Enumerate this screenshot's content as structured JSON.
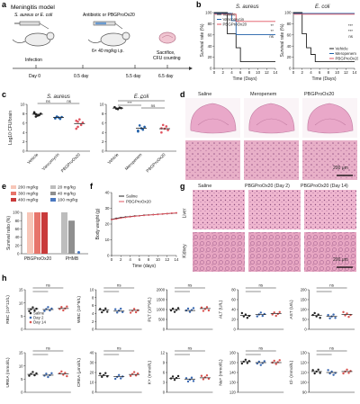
{
  "panels": {
    "a": {
      "label": "a",
      "title": "Meningitis model",
      "inject_label": "S. aureus or E. coli",
      "treat_label": "Antibiotic or PBGProOx20",
      "dose_label": "6× 40 mg/kg i.p.",
      "sacrifice_label": "Sacrifice,\nCFU counting",
      "infection_label": "Infection",
      "days": [
        "Day 0",
        "0.5 day",
        "5.5 day",
        "6.5 day"
      ]
    },
    "b": {
      "label": "b"
    },
    "c": {
      "label": "c"
    },
    "d": {
      "label": "d",
      "columns": [
        "Saline",
        "Meropenem",
        "PBGProOx20"
      ],
      "scalebar": "200 μm"
    },
    "e": {
      "label": "e"
    },
    "f": {
      "label": "f"
    },
    "g": {
      "label": "g",
      "columns": [
        "Saline",
        "PBGProOx20 (Day 2)",
        "PBGProOx20 (Day 14)"
      ],
      "rows": [
        "Liver",
        "Kidney"
      ],
      "scalebar": "200 μm"
    },
    "h": {
      "label": "h"
    }
  },
  "colors": {
    "vehicle": "#222222",
    "vancomycin": "#1f5fa8",
    "meropenem": "#1f5fa8",
    "pbg": "#e05560",
    "pbg_dark": "#c93a3a",
    "day2": "#3a68b0",
    "day14": "#d9534f",
    "grey": "#a5a5a5",
    "pink": "#f4b8b8",
    "tissue": "#e6a9c4"
  },
  "chart_data": [
    {
      "id": "b1",
      "type": "line",
      "title": "S. aureus",
      "xlabel": "Time (Days)",
      "ylabel": "Survival rate (%)",
      "x": [
        0,
        2,
        4,
        6,
        8,
        10,
        12,
        14
      ],
      "xlim": [
        0,
        14
      ],
      "ylim": [
        0,
        100
      ],
      "yticks": [
        0,
        20,
        40,
        60,
        80,
        100
      ],
      "series": [
        {
          "name": "Vehicle",
          "color": "#222222",
          "steps": [
            [
              0,
              100
            ],
            [
              3,
              100
            ],
            [
              3,
              62
            ],
            [
              5,
              62
            ],
            [
              5,
              37
            ],
            [
              6,
              37
            ],
            [
              6,
              12
            ],
            [
              14,
              12
            ]
          ]
        },
        {
          "name": "Vancomycin",
          "color": "#1f5fa8",
          "steps": [
            [
              0,
              100
            ],
            [
              4,
              100
            ],
            [
              4,
              87
            ],
            [
              5,
              87
            ],
            [
              5,
              62
            ],
            [
              14,
              62
            ]
          ]
        },
        {
          "name": "PBGProOx20",
          "color": "#e05560",
          "steps": [
            [
              0,
              100
            ],
            [
              5,
              100
            ],
            [
              5,
              87
            ],
            [
              14,
              87
            ]
          ]
        }
      ],
      "annotations": [
        "**",
        "**",
        "ns"
      ]
    },
    {
      "id": "b2",
      "type": "line",
      "title": "E. coli",
      "xlabel": "Time (Days)",
      "ylabel": "Survival rate (%)",
      "x": [
        0,
        2,
        4,
        6,
        8,
        10,
        12,
        14
      ],
      "xlim": [
        0,
        14
      ],
      "ylim": [
        0,
        100
      ],
      "yticks": [
        0,
        20,
        40,
        60,
        80,
        100
      ],
      "series": [
        {
          "name": "Vehicle",
          "color": "#222222",
          "steps": [
            [
              0,
              100
            ],
            [
              2,
              100
            ],
            [
              2,
              62
            ],
            [
              3,
              62
            ],
            [
              3,
              37
            ],
            [
              4,
              37
            ],
            [
              4,
              25
            ],
            [
              5,
              25
            ],
            [
              5,
              12
            ],
            [
              14,
              12
            ]
          ]
        },
        {
          "name": "Meropenem",
          "color": "#1f5fa8",
          "steps": [
            [
              0,
              100
            ],
            [
              14,
              100
            ]
          ]
        },
        {
          "name": "PBGProOx20",
          "color": "#e05560",
          "steps": [
            [
              0,
              100
            ],
            [
              14,
              100
            ]
          ]
        }
      ],
      "annotations": [
        "***",
        "***",
        "ns"
      ]
    },
    {
      "id": "c1",
      "type": "scatter",
      "title": "S. aureus",
      "ylabel": "Log10 CFU/brain",
      "ylim": [
        0,
        10
      ],
      "yticks": [
        0,
        2,
        4,
        6,
        8,
        10
      ],
      "categories": [
        "Vehicle",
        "Vancomycin",
        "PBGProOx20"
      ],
      "colors": [
        "#222222",
        "#1f5fa8",
        "#e05560"
      ],
      "means": [
        7.9,
        7.2,
        5.9
      ],
      "points": [
        [
          8.3,
          7.9,
          7.6,
          7.7,
          8.0,
          8.1,
          7.4
        ],
        [
          7.0,
          7.4,
          7.2,
          6.9,
          7.3,
          7.1
        ],
        [
          6.5,
          5.2,
          6.8,
          5.6,
          6.1,
          4.8,
          6.3
        ]
      ],
      "annotations": [
        "ns",
        "ns"
      ]
    },
    {
      "id": "c2",
      "type": "scatter",
      "title": "E. coli",
      "ylabel": "Log10 CFU/brain",
      "ylim": [
        0,
        10
      ],
      "yticks": [
        0,
        2,
        4,
        6,
        8,
        10
      ],
      "categories": [
        "Vehicle",
        "Meropenem",
        "PBGProOx20"
      ],
      "colors": [
        "#222222",
        "#1f5fa8",
        "#e05560"
      ],
      "means": [
        9.2,
        4.9,
        4.8
      ],
      "points": [
        [
          9.4,
          9.1,
          9.0,
          9.3,
          9.2
        ],
        [
          4.2,
          5.5,
          4.9,
          4.6,
          5.2,
          4.4
        ],
        [
          4.0,
          5.6,
          4.8,
          5.3,
          4.5,
          4.9
        ]
      ],
      "annotations": [
        "**",
        "***",
        "ns"
      ]
    },
    {
      "id": "e",
      "type": "bar",
      "ylabel": "Survival ratio (%)",
      "ylim": [
        0,
        100
      ],
      "yticks": [
        0,
        20,
        40,
        60,
        80,
        100
      ],
      "legend": [
        {
          "name": "200 mg/kg",
          "color": "#f7c6b8"
        },
        {
          "name": "300 mg/kg",
          "color": "#e7746a"
        },
        {
          "name": "400 mg/kg",
          "color": "#c93a3a"
        },
        {
          "name": "20 mg/kg",
          "color": "#bdbdbd"
        },
        {
          "name": "40 mg/kg",
          "color": "#8f8f8f"
        },
        {
          "name": "100 mg/kg",
          "color": "#4a78c0"
        }
      ],
      "groups": [
        {
          "name": "PBGProOx20",
          "values": [
            100,
            100,
            100
          ]
        },
        {
          "name": "PHMB",
          "values": [
            100,
            80,
            0
          ]
        }
      ]
    },
    {
      "id": "f",
      "type": "line",
      "xlabel": "Time (days)",
      "ylabel": "Body weight (g)",
      "xlim": [
        0,
        14
      ],
      "ylim": [
        0,
        40
      ],
      "yticks": [
        0,
        10,
        20,
        30,
        40
      ],
      "xticks": [
        0,
        2,
        4,
        6,
        8,
        10,
        12,
        14
      ],
      "x": [
        0,
        1,
        2,
        3,
        4,
        5,
        6,
        7,
        8,
        9,
        10,
        11,
        12,
        13,
        14
      ],
      "series": [
        {
          "name": "Saline",
          "color": "#222222",
          "values": [
            23.0,
            23.6,
            24.1,
            24.5,
            24.8,
            25.1,
            25.3,
            25.6,
            25.8,
            26.0,
            26.2,
            26.4,
            26.6,
            26.8,
            27.0
          ]
        },
        {
          "name": "PBGProOx20",
          "color": "#e05560",
          "values": [
            22.8,
            23.2,
            23.8,
            24.2,
            24.6,
            24.9,
            25.2,
            25.5,
            25.7,
            25.9,
            26.1,
            26.4,
            26.6,
            26.9,
            27.1
          ]
        }
      ]
    },
    {
      "id": "h",
      "type": "scatter",
      "legend": [
        {
          "name": "Saline",
          "color": "#222222"
        },
        {
          "name": "Day 2",
          "color": "#3a68b0"
        },
        {
          "name": "Day 14",
          "color": "#d9534f"
        }
      ],
      "panels": [
        {
          "ylabel": "RBC (10^12/L)",
          "ylim": [
            0,
            15
          ],
          "yticks": [
            0,
            5,
            10,
            15
          ],
          "means": [
            7.8,
            7.5,
            7.9
          ]
        },
        {
          "ylabel": "WBC (10^9/L)",
          "ylim": [
            0,
            10
          ],
          "yticks": [
            0,
            2,
            4,
            6,
            8,
            10
          ],
          "means": [
            4.9,
            4.6,
            4.8
          ]
        },
        {
          "ylabel": "PLT (10^9/L)",
          "ylim": [
            0,
            2000
          ],
          "yticks": [
            0,
            500,
            1000,
            1500,
            2000
          ],
          "means": [
            1000,
            950,
            1050
          ]
        },
        {
          "ylabel": "ALT (U/L)",
          "ylim": [
            0,
            80
          ],
          "yticks": [
            0,
            20,
            40,
            60,
            80
          ],
          "means": [
            28,
            30,
            32
          ]
        },
        {
          "ylabel": "AST (U/L)",
          "ylim": [
            0,
            200
          ],
          "yticks": [
            0,
            50,
            100,
            150,
            200
          ],
          "means": [
            70,
            65,
            75
          ]
        },
        {
          "ylabel": "UREA (mmol/L)",
          "ylim": [
            0,
            15
          ],
          "yticks": [
            0,
            5,
            10,
            15
          ],
          "means": [
            6.8,
            6.5,
            7.0
          ]
        },
        {
          "ylabel": "CREA (μmol/L)",
          "ylim": [
            0,
            40
          ],
          "yticks": [
            0,
            10,
            20,
            30,
            40
          ],
          "means": [
            17,
            16,
            18
          ]
        },
        {
          "ylabel": "K+ (mmol/L)",
          "ylim": [
            0,
            12
          ],
          "yticks": [
            0,
            3,
            6,
            9,
            12
          ],
          "means": [
            4.2,
            4.0,
            4.4
          ]
        },
        {
          "ylabel": "Na+ (mmol/L)",
          "ylim": [
            120,
            160
          ],
          "yticks": [
            120,
            130,
            140,
            150,
            160
          ],
          "means": [
            151,
            150,
            150
          ]
        },
        {
          "ylabel": "Cl- (mmol/L)",
          "ylim": [
            90,
            130
          ],
          "yticks": [
            90,
            100,
            110,
            120,
            130
          ],
          "means": [
            111,
            110,
            111
          ]
        }
      ],
      "annotation": "ns"
    }
  ]
}
